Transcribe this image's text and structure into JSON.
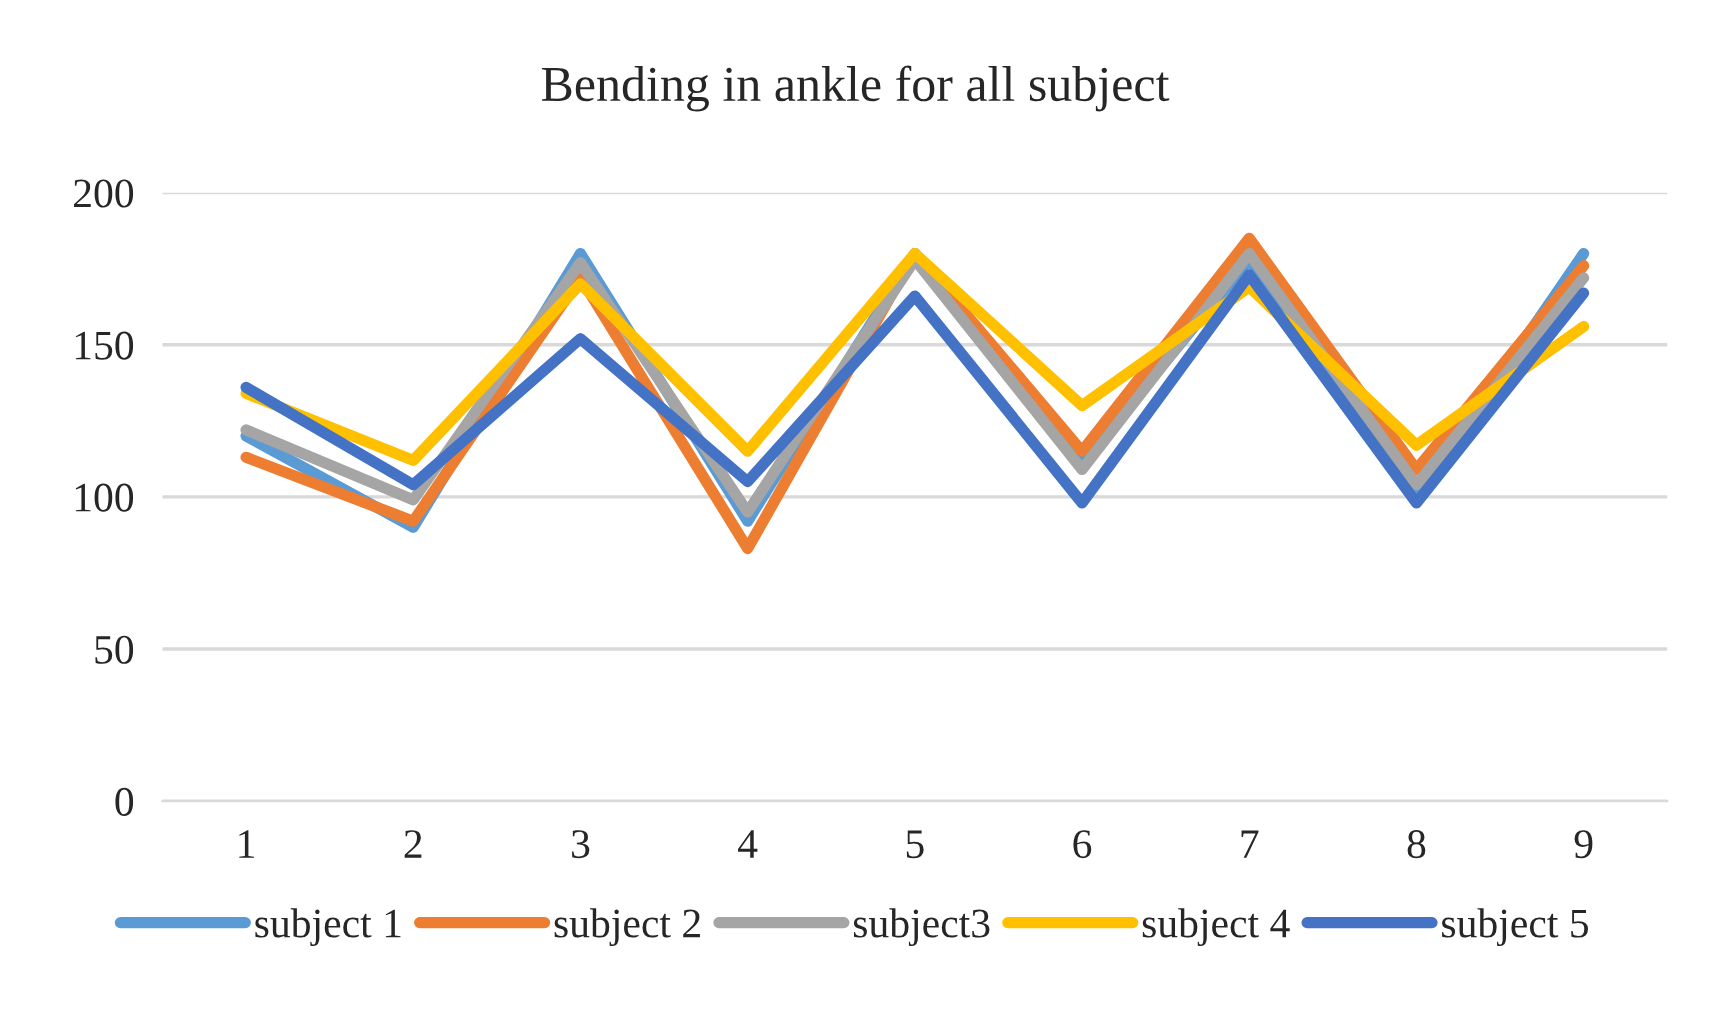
{
  "chart_data": {
    "type": "line",
    "title": "Bending in ankle for all subject",
    "categories": [
      "1",
      "2",
      "3",
      "4",
      "5",
      "6",
      "7",
      "8",
      "9"
    ],
    "series": [
      {
        "name": "subject 1",
        "color": "#5b9bd5",
        "values": [
          120,
          90,
          180,
          92,
          180,
          111,
          178,
          100,
          180
        ]
      },
      {
        "name": "subject 2",
        "color": "#ed7d31",
        "values": [
          113,
          92,
          172,
          83,
          180,
          115,
          185,
          109,
          176
        ]
      },
      {
        "name": "subject3",
        "color": "#a5a5a5",
        "values": [
          122,
          99,
          177,
          95,
          178,
          109,
          180,
          104,
          172
        ]
      },
      {
        "name": "subject 4",
        "color": "#ffc000",
        "values": [
          134,
          112,
          170,
          115,
          180,
          130,
          169,
          117,
          156
        ]
      },
      {
        "name": "subject 5",
        "color": "#4472c4",
        "values": [
          136,
          104,
          152,
          105,
          166,
          98,
          173,
          98,
          167
        ]
      }
    ],
    "ylim": [
      0,
      200
    ],
    "yticks": [
      0,
      50,
      100,
      150,
      200
    ],
    "grid": "y",
    "legend": "bottom",
    "marker": "none",
    "line_style": "solid"
  }
}
